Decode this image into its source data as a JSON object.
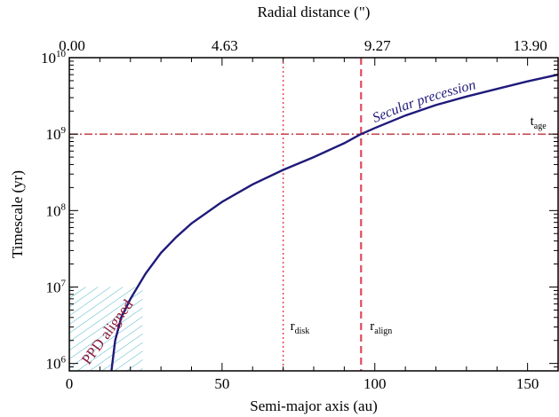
{
  "chart_data": {
    "type": "line",
    "colors": {
      "curve": "#1f1a7a",
      "ref_lines": "#e04a5a",
      "age_line": "#c0303a",
      "hatch": "#4fb3c8",
      "ppd_label": "#8b1a3a"
    },
    "x_axis": {
      "label": "Semi-major axis (au)",
      "range": [
        0,
        160
      ],
      "ticks": [
        0,
        50,
        100,
        150
      ],
      "tick_labels": [
        "0",
        "50",
        "100",
        "150"
      ],
      "minor_step": 10
    },
    "x_axis_top": {
      "label": "Radial distance (\")",
      "tick_labels": [
        "0.00",
        "4.63",
        "9.27",
        "13.90"
      ],
      "tick_positions_au": [
        0,
        50,
        100,
        150
      ]
    },
    "y_axis": {
      "label": "Timescale (yr)",
      "scale": "log",
      "range": [
        800000,
        10000000000
      ],
      "ticks": [
        1000000,
        10000000,
        100000000,
        1000000000,
        10000000000
      ],
      "tick_base": "10",
      "tick_exponents": [
        "6",
        "7",
        "8",
        "9",
        "10"
      ]
    },
    "series": [
      {
        "name": "Secular precession",
        "x": [
          13.8,
          15,
          17,
          20,
          25,
          30,
          35,
          40,
          50,
          60,
          70,
          80,
          90,
          95,
          100,
          110,
          120,
          130,
          140,
          150,
          160
        ],
        "y": [
          800000,
          2000000,
          4000000,
          7000000,
          15000000,
          28000000,
          45000000,
          68000000,
          130000000,
          220000000,
          340000000,
          500000000,
          760000000,
          980000000,
          1200000000,
          1750000000,
          2400000000,
          3100000000,
          3900000000,
          4900000000,
          6000000000
        ]
      }
    ],
    "annotations": {
      "t_age": {
        "main": "t",
        "sub": "age",
        "value": 1000000000
      },
      "r_disk": {
        "main": "r",
        "sub": "disk",
        "x": 70
      },
      "r_align": {
        "main": "r",
        "sub": "align",
        "x": 95.5
      },
      "ppd": {
        "label": "PPD aligned",
        "x_max": 24,
        "y_max": 10000000
      }
    }
  }
}
